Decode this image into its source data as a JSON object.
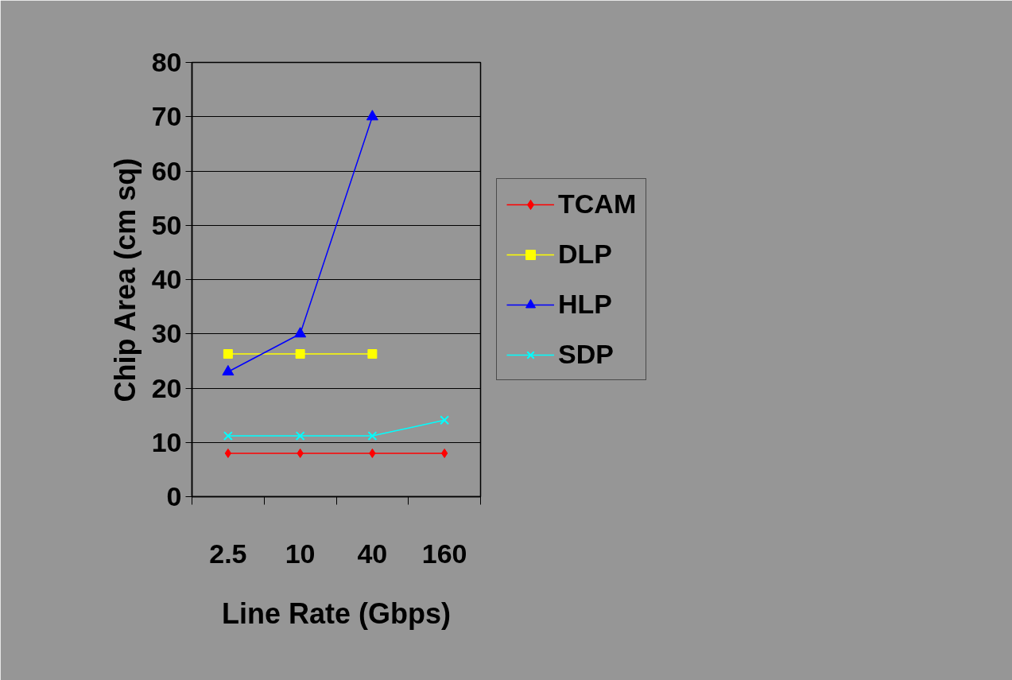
{
  "chart_data": {
    "type": "line",
    "xlabel": "Line Rate (Gbps)",
    "ylabel": "Chip Area (cm sq)",
    "categories": [
      "2.5",
      "10",
      "40",
      "160"
    ],
    "series": [
      {
        "name": "TCAM",
        "color": "#ff0000",
        "marker": "diamond",
        "values": [
          8,
          8,
          8,
          8
        ]
      },
      {
        "name": "DLP",
        "color": "#ffff00",
        "marker": "square",
        "values": [
          26.3,
          26.3,
          26.3,
          null
        ]
      },
      {
        "name": "HLP",
        "color": "#0000ff",
        "marker": "triangle",
        "values": [
          23,
          30,
          70,
          null
        ]
      },
      {
        "name": "SDP",
        "color": "#00ffff",
        "marker": "cross",
        "values": [
          11.2,
          11.2,
          11.2,
          14.1
        ]
      }
    ],
    "ylim": [
      0,
      80
    ],
    "yticks": [
      0,
      10,
      20,
      30,
      40,
      50,
      60,
      70,
      80
    ],
    "grid": "y",
    "legend": "right",
    "line_style": "solid"
  }
}
